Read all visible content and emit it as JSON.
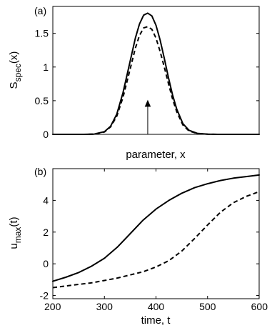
{
  "chart_data": [
    {
      "panel_label": "(a)",
      "type": "line",
      "xlabel": "parameter, x",
      "ylabel_main": "S",
      "ylabel_sub": "spec",
      "ylabel_tail": "(x)",
      "x_tick_labels_shown": false,
      "xlim": [
        0,
        1
      ],
      "ylim": [
        0,
        1.9
      ],
      "yticks": [
        0,
        0.5,
        1,
        1.5
      ],
      "ytick_labels": [
        "0",
        "0.5",
        "1",
        "1.5"
      ],
      "grid": false,
      "series": [
        {
          "style": "solid",
          "x": [
            0.0,
            0.15,
            0.2,
            0.25,
            0.28,
            0.31,
            0.34,
            0.37,
            0.4,
            0.42,
            0.44,
            0.46,
            0.48,
            0.5,
            0.52,
            0.54,
            0.56,
            0.58,
            0.6,
            0.63,
            0.66,
            0.7,
            0.75,
            0.8,
            1.0
          ],
          "y": [
            0.0,
            0.0,
            0.003,
            0.04,
            0.12,
            0.3,
            0.62,
            1.02,
            1.43,
            1.64,
            1.77,
            1.8,
            1.76,
            1.62,
            1.4,
            1.13,
            0.85,
            0.59,
            0.38,
            0.16,
            0.06,
            0.015,
            0.002,
            0.0,
            0.0
          ]
        },
        {
          "style": "dashed",
          "x": [
            0.0,
            0.15,
            0.2,
            0.25,
            0.28,
            0.31,
            0.34,
            0.37,
            0.4,
            0.42,
            0.44,
            0.46,
            0.48,
            0.5,
            0.52,
            0.54,
            0.56,
            0.58,
            0.6,
            0.63,
            0.66,
            0.7,
            0.75,
            0.8,
            1.0
          ],
          "y": [
            0.0,
            0.0,
            0.003,
            0.035,
            0.11,
            0.27,
            0.55,
            0.91,
            1.28,
            1.47,
            1.58,
            1.6,
            1.56,
            1.43,
            1.23,
            1.0,
            0.76,
            0.53,
            0.34,
            0.14,
            0.05,
            0.012,
            0.002,
            0.0,
            0.0
          ]
        }
      ],
      "annotation": {
        "type": "arrow",
        "x": 0.46,
        "y_from": 0.0,
        "y_to": 0.5
      }
    },
    {
      "panel_label": "(b)",
      "type": "line",
      "xlabel": "time, t",
      "ylabel_main": "u",
      "ylabel_sub": "max",
      "ylabel_tail": "(t)",
      "xlim": [
        200,
        600
      ],
      "ylim": [
        -2.2,
        6.0
      ],
      "xticks": [
        200,
        300,
        400,
        500,
        600
      ],
      "xtick_labels": [
        "200",
        "300",
        "400",
        "500",
        "600"
      ],
      "yticks": [
        -2,
        0,
        2,
        4
      ],
      "ytick_labels": [
        "-2",
        "0",
        "2",
        "4"
      ],
      "grid": false,
      "series": [
        {
          "style": "solid",
          "x": [
            200,
            225,
            250,
            275,
            300,
            325,
            350,
            375,
            400,
            425,
            450,
            475,
            500,
            525,
            550,
            575,
            600
          ],
          "y": [
            -1.1,
            -0.85,
            -0.55,
            -0.15,
            0.35,
            1.05,
            1.9,
            2.75,
            3.45,
            4.0,
            4.45,
            4.8,
            5.05,
            5.25,
            5.4,
            5.5,
            5.6
          ]
        },
        {
          "style": "dashed",
          "x": [
            200,
            225,
            250,
            275,
            300,
            325,
            350,
            375,
            400,
            425,
            450,
            475,
            500,
            525,
            550,
            575,
            600
          ],
          "y": [
            -1.5,
            -1.4,
            -1.3,
            -1.2,
            -1.05,
            -0.9,
            -0.7,
            -0.5,
            -0.2,
            0.2,
            0.8,
            1.6,
            2.45,
            3.25,
            3.85,
            4.25,
            4.55
          ]
        }
      ]
    }
  ]
}
